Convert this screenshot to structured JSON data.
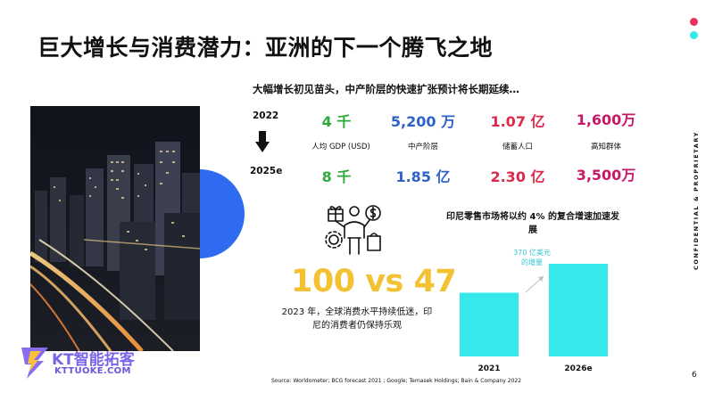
{
  "slide": {
    "title": "巨大增长与消费潜力：亚洲的下一个腾飞之地",
    "subtitle": "大幅增长初见苗头，中产阶层的快速扩张预计将长期延续…",
    "page_number": "6",
    "confidential": "CONFIDENTIAL & PROPRIETARY",
    "source": "Source: Worldometer; BCG forecast 2021 ; Google; Temasek Holdings; Bain & Company 2022",
    "colors": {
      "pink_dot": "#e8305a",
      "cyan_dot": "#34e8ec",
      "accent_blue": "#2f6bf0",
      "bar": "#34e8ec",
      "yellow": "#f3c232"
    }
  },
  "stats": {
    "year_start": "2022",
    "year_end": "2025e",
    "columns": [
      {
        "value_2022": "4 千",
        "label": "人均 GDP (USD)",
        "value_2025": "8 千",
        "color": "green"
      },
      {
        "value_2022": "5,200 万",
        "label": "中产阶层",
        "value_2025": "1.85 亿",
        "color": "blue"
      },
      {
        "value_2022": "1.07 亿",
        "label": "储蓄人口",
        "value_2025": "2.30 亿",
        "color": "red"
      },
      {
        "value_2022": "1,600万",
        "label": "高知群体",
        "value_2025": "3,500万",
        "color": "purple"
      }
    ]
  },
  "consumer": {
    "compare": "100 vs 47",
    "note": "2023 年，全球消费水平持续低迷，印尼的消费者仍保持乐观",
    "icon": "consumer-shopping-icon"
  },
  "chart_data": {
    "type": "bar",
    "title": "印尼零售市场将以约 4% 的复合增速加速发展",
    "categories": [
      "2021",
      "2026e"
    ],
    "values": [
      0.55,
      0.8
    ],
    "annotation": "370 亿美元的增量",
    "annotation_line1": "370 亿美元",
    "annotation_line2": "的增量"
  },
  "logo": {
    "name": "KT智能拓客",
    "url": "KTTUOKE.COM"
  }
}
